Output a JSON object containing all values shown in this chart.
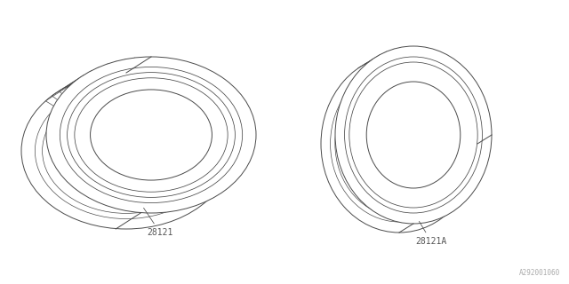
{
  "bg_color": "#ffffff",
  "line_color": "#4a4a4a",
  "label_color": "#555555",
  "label1": "28121",
  "label2": "28121A",
  "watermark": "A292001060",
  "lw": 0.7
}
